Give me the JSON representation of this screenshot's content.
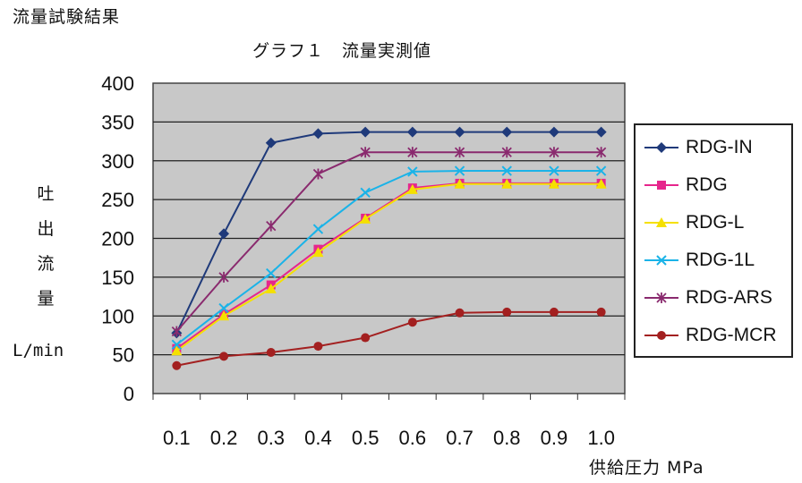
{
  "header": {
    "page_title": "流量試験結果",
    "graph_title": "グラフ１　流量実測値"
  },
  "chart_data": {
    "type": "line",
    "title": "グラフ１　流量実測値",
    "xlabel": "供給圧力 MPa",
    "ylabel": "吐出流量",
    "ylabel_unit": "L/min",
    "categories": [
      "0.1",
      "0.2",
      "0.3",
      "0.4",
      "0.5",
      "0.6",
      "0.7",
      "0.8",
      "0.9",
      "1.0"
    ],
    "ylim": [
      0,
      400
    ],
    "yticks": [
      0,
      50,
      100,
      150,
      200,
      250,
      300,
      350,
      400
    ],
    "grid": true,
    "legend_position": "right",
    "series": [
      {
        "name": "RDG-IN",
        "color": "#1f3a7a",
        "marker": "diamond",
        "values": [
          78,
          206,
          323,
          335,
          337,
          337,
          337,
          337,
          337,
          337
        ]
      },
      {
        "name": "RDG",
        "color": "#e6268c",
        "marker": "square",
        "values": [
          58,
          102,
          140,
          186,
          226,
          265,
          271,
          271,
          271,
          271
        ]
      },
      {
        "name": "RDG-L",
        "color": "#f5e000",
        "marker": "triangle",
        "values": [
          55,
          100,
          135,
          182,
          225,
          263,
          270,
          270,
          270,
          270
        ]
      },
      {
        "name": "RDG-1L",
        "color": "#1ab3e8",
        "marker": "x",
        "values": [
          63,
          110,
          155,
          212,
          259,
          286,
          287,
          287,
          287,
          287
        ]
      },
      {
        "name": "RDG-ARS",
        "color": "#8a2a6e",
        "marker": "asterisk",
        "values": [
          80,
          150,
          216,
          283,
          311,
          311,
          311,
          311,
          311,
          311
        ]
      },
      {
        "name": "RDG-MCR",
        "color": "#a32020",
        "marker": "circle",
        "values": [
          36,
          48,
          53,
          61,
          72,
          92,
          104,
          105,
          105,
          105
        ]
      }
    ]
  }
}
